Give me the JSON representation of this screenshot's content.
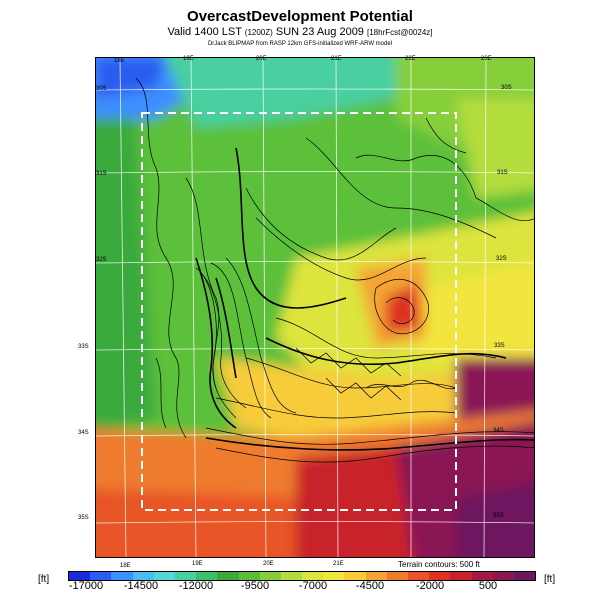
{
  "header": {
    "title": "OvercastDevelopment Potential",
    "valid_main": "Valid 1400 LST",
    "valid_small": "(1200Z)",
    "valid_date": "SUN 23 Aug 2009",
    "valid_forecast": "[18hrFcst@0024z]",
    "credit": "DrJack BLIPMAP from RASP 12km GFS-initialized WRF-ARW model"
  },
  "map": {
    "lon_ticks_top": [
      "18E",
      "19E",
      "20E",
      "21E",
      "22E",
      "23E"
    ],
    "lon_ticks_bottom": [
      "18E",
      "19E",
      "20E",
      "21E"
    ],
    "lat_ticks_right": [
      "30S",
      "31S",
      "32S",
      "33S",
      "34S",
      "35S"
    ],
    "lat_ticks_left": [
      "30S",
      "31S",
      "32S",
      "33S",
      "34S",
      "35S"
    ]
  },
  "legend": {
    "terrain_note": "Terrain contours: 500 ft",
    "unit_left": "[ft]",
    "unit_right": "[ft]",
    "tick_labels": [
      "-17000",
      "-14500",
      "-12000",
      "-9500",
      "-7000",
      "-4500",
      "-2000",
      "500"
    ],
    "colors": [
      "#1a2bdc",
      "#2c5cf0",
      "#3d8fff",
      "#4cbdf2",
      "#52d8d6",
      "#49cfa0",
      "#3cc06a",
      "#3aaa3e",
      "#59be3a",
      "#86cf3b",
      "#b3dc3e",
      "#dde43e",
      "#f2e53c",
      "#f6cc3a",
      "#f4a434",
      "#ef7c2d",
      "#e85426",
      "#dc3324",
      "#c8202c",
      "#a91844",
      "#8a1654",
      "#6e165e"
    ]
  }
}
